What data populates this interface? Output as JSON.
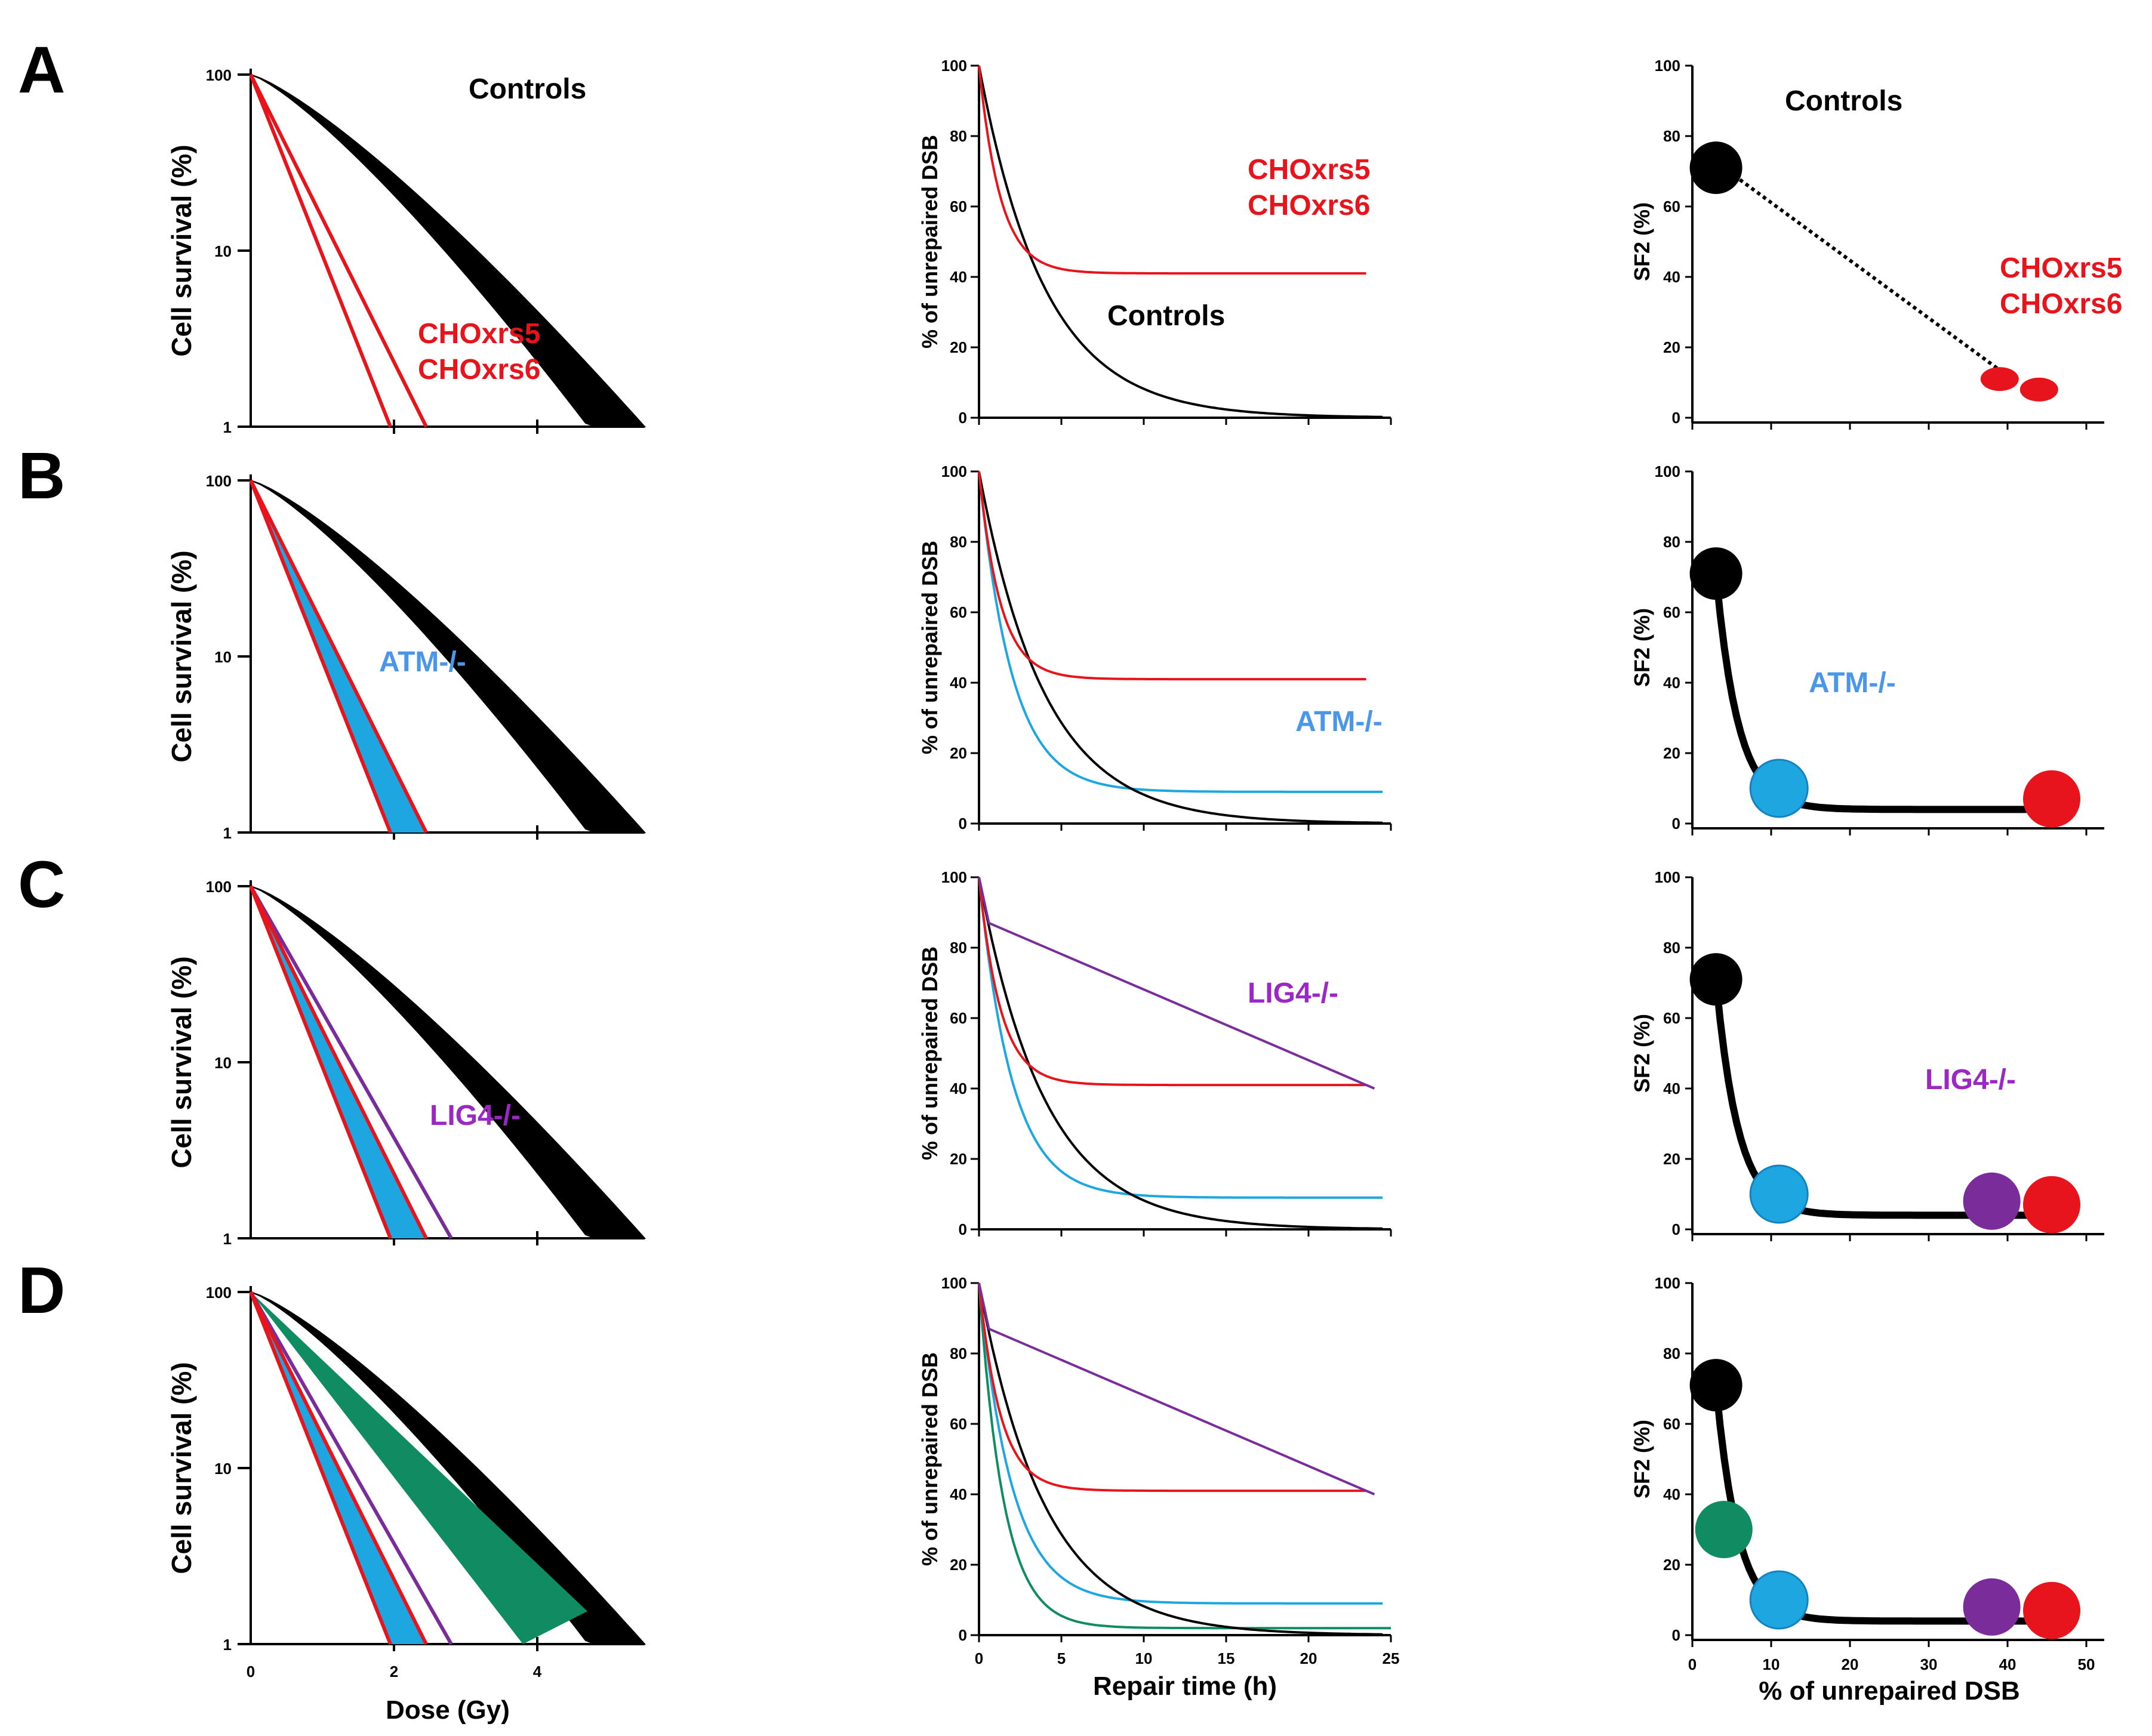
{
  "panel_letters": [
    "A",
    "B",
    "C",
    "D"
  ],
  "colors": {
    "controls": "#000000",
    "cho": "#e8141b",
    "atm": "#1ea6e1",
    "lig4": "#7a2c9a",
    "green": "#0f8c62",
    "atm_label": "#4a96e8",
    "lig4_label": "#9b27c4"
  },
  "chart_data": [
    {
      "type": "line",
      "role": "survival",
      "rows": [
        "A",
        "B",
        "C",
        "D"
      ],
      "ylabel": "Cell survival (%)",
      "xlabel": "Dose (Gy)",
      "yscale": "log",
      "ylim": [
        1,
        100
      ],
      "xlim": [
        0,
        5.5
      ],
      "y_ticks": [
        "100",
        "10",
        "1"
      ],
      "x_ticks": [
        "0",
        "2",
        "4"
      ],
      "series": [
        {
          "name": "Controls",
          "shape": "band",
          "dose_at_1pct": [
            4.6,
            5.5
          ],
          "rows": [
            "A",
            "B",
            "C",
            "D"
          ]
        },
        {
          "name": "CHOxrs5 / CHOxrs6",
          "shape": "two-lines",
          "dose_at_1pct": [
            1.95,
            2.45
          ],
          "rows": [
            "A",
            "B",
            "C",
            "D"
          ]
        },
        {
          "name": "ATM-/-",
          "shape": "band",
          "dose_at_1pct": [
            2.05,
            2.3
          ],
          "rows": [
            "B",
            "C",
            "D"
          ]
        },
        {
          "name": "LIG4-/-",
          "shape": "line",
          "dose_at_1pct": [
            2.8
          ],
          "rows": [
            "C",
            "D"
          ]
        },
        {
          "name": "green",
          "shape": "wedge",
          "dose_at_1pct": [
            3.8,
            4.7
          ],
          "rows": [
            "D"
          ]
        }
      ],
      "labels": {
        "controls": "Controls",
        "cho1": "CHOxrs5",
        "cho2": "CHOxrs6",
        "atm": "ATM-/-",
        "lig4": "LIG4-/-"
      }
    },
    {
      "type": "line",
      "role": "repair",
      "rows": [
        "A",
        "B",
        "C",
        "D"
      ],
      "ylabel": "% of unrepaired DSB",
      "xlabel": "Repair time (h)",
      "ylim": [
        0,
        100
      ],
      "xlim": [
        0,
        25
      ],
      "y_ticks": [
        0,
        20,
        40,
        60,
        80,
        100
      ],
      "x_ticks": [
        0,
        5,
        10,
        15,
        20,
        25
      ],
      "series": [
        {
          "name": "Controls",
          "plateau": 0,
          "tau_h": 4,
          "rows": [
            "A",
            "B",
            "C",
            "D"
          ]
        },
        {
          "name": "CHOxrs5 / CHOxrs6",
          "plateau": 41,
          "tau_h": 1.3,
          "rows": [
            "A",
            "B",
            "C",
            "D"
          ]
        },
        {
          "name": "ATM-/-",
          "plateau": 9,
          "tau_h": 2.0,
          "rows": [
            "B",
            "C",
            "D"
          ]
        },
        {
          "name": "LIG4-/-",
          "linear_from": 87,
          "linear_to": 40,
          "rows": [
            "C",
            "D"
          ]
        },
        {
          "name": "green",
          "plateau": 2,
          "tau_h": 1.5,
          "rows": [
            "D"
          ]
        }
      ],
      "labels": {
        "controls": "Controls",
        "cho1": "CHOxrs5",
        "cho2": "CHOxrs6",
        "atm": "ATM-/-",
        "lig4": "LIG4-/-"
      }
    },
    {
      "type": "scatter",
      "role": "sf2",
      "rows": [
        "A",
        "B",
        "C",
        "D"
      ],
      "ylabel": "SF2 (%)",
      "xlabel": "% of unrepaired DSB",
      "ylim": [
        0,
        100
      ],
      "xlim": [
        0,
        50
      ],
      "y_ticks": [
        0,
        20,
        40,
        60,
        80,
        100
      ],
      "x_ticks": [
        0,
        10,
        20,
        30,
        40,
        50
      ],
      "points": [
        {
          "name": "Controls",
          "x": 3,
          "y": 71,
          "rows": [
            "A",
            "B",
            "C",
            "D"
          ]
        },
        {
          "name": "CHOxrs5",
          "x": 39,
          "y": 11,
          "rows": [
            "A"
          ]
        },
        {
          "name": "CHOxrs6",
          "x": 44,
          "y": 8,
          "rows": [
            "A"
          ]
        },
        {
          "name": "CHO",
          "x": 45,
          "y": 7,
          "rows": [
            "B",
            "C",
            "D"
          ]
        },
        {
          "name": "ATM-/-",
          "x": 11,
          "y": 10,
          "rows": [
            "B",
            "C",
            "D"
          ]
        },
        {
          "name": "LIG4-/-",
          "x": 38,
          "y": 8,
          "rows": [
            "C",
            "D"
          ]
        },
        {
          "name": "green",
          "x": 4,
          "y": 30,
          "rows": [
            "D"
          ]
        }
      ],
      "labels": {
        "controls": "Controls",
        "cho1": "CHOxrs5",
        "cho2": "CHOxrs6",
        "atm": "ATM-/-",
        "lig4": "LIG4-/-"
      }
    }
  ]
}
